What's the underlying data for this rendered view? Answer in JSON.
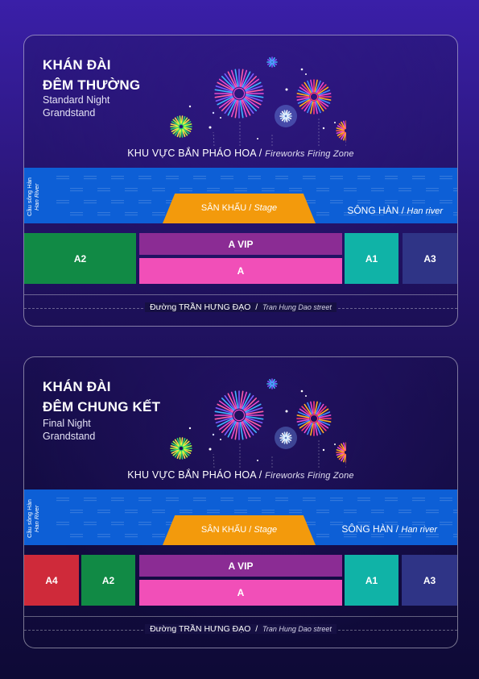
{
  "colors": {
    "river": "#0d5fd6",
    "stage": "#f39a0c",
    "vip": "#8b2c94",
    "a": "#f14fb8",
    "green": "#118a45",
    "teal": "#10b3a7",
    "indigo": "#2f3486",
    "red": "#cf2a3a"
  },
  "cards": [
    {
      "title_line1": "KHÁN ĐÀI",
      "title_line2": "ĐÊM THƯỜNG",
      "subtitle_line1": "Standard Night",
      "subtitle_line2": "Grandstand",
      "zone_vi": "KHU VỰC BẮN PHÁO HOA /",
      "zone_en": "Fireworks Firing Zone",
      "bridge_vi": "Cầu sông Hàn",
      "bridge_en": "Han River",
      "stage_vi": "SÂN KHẤU /",
      "stage_en": "Stage",
      "river_vi": "SÔNG HÀN /",
      "river_en": "Han river",
      "seats": {
        "a2": "A2",
        "avip": "A VIP",
        "a": "A",
        "a1": "A1",
        "a3": "A3"
      },
      "road_vi": "Đường TRẦN HƯNG ĐẠO",
      "road_sep": "/",
      "road_en": "Tran Hung Dao street"
    },
    {
      "title_line1": "KHÁN ĐÀI",
      "title_line2": "ĐÊM CHUNG KẾT",
      "subtitle_line1": "Final Night",
      "subtitle_line2": "Grandstand",
      "zone_vi": "KHU VỰC BẮN PHÁO HOA /",
      "zone_en": "Fireworks Firing Zone",
      "bridge_vi": "Cầu sông Hàn",
      "bridge_en": "Han River",
      "stage_vi": "SÂN KHẤU /",
      "stage_en": "Stage",
      "river_vi": "SÔNG HÀN /",
      "river_en": "Han river",
      "seats": {
        "a4": "A4",
        "a2": "A2",
        "avip": "A VIP",
        "a": "A",
        "a1": "A1",
        "a3": "A3"
      },
      "road_vi": "Đường TRẦN HƯNG ĐẠO",
      "road_sep": "/",
      "road_en": "Tran Hung Dao street"
    }
  ]
}
